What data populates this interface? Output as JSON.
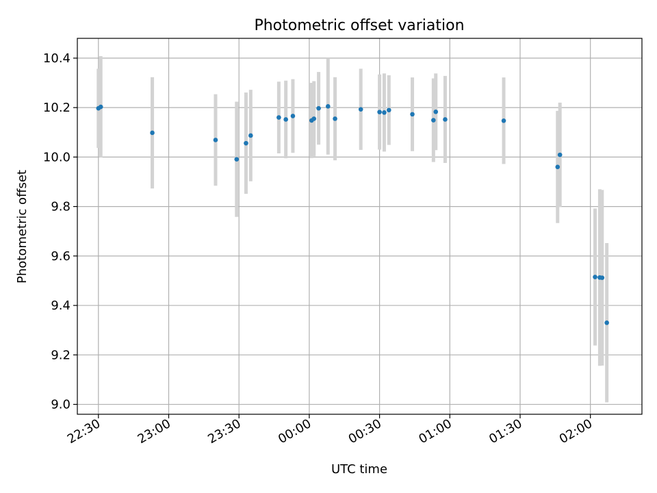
{
  "chart_data": {
    "type": "scatter",
    "title": "Photometric offset variation",
    "xlabel": "UTC time",
    "ylabel": "Photometric offset",
    "x_is_time": true,
    "xlim": [
      "22:21",
      "02:22"
    ],
    "ylim": [
      8.96,
      10.48
    ],
    "grid": true,
    "x_ticks": [
      "22:30",
      "23:00",
      "23:30",
      "00:00",
      "00:30",
      "01:00",
      "01:30",
      "02:00"
    ],
    "y_ticks": [
      "9.0",
      "9.2",
      "9.4",
      "9.6",
      "9.8",
      "10.0",
      "10.2",
      "10.4"
    ],
    "colors": {
      "point": "#1f77b4",
      "errorbar": "#d3d3d3",
      "grid": "#b0b0b0"
    },
    "series": [
      {
        "points": [
          {
            "x": "22:30",
            "y": 10.197,
            "err": 0.16
          },
          {
            "x": "22:31",
            "y": 10.203,
            "err": 0.205
          },
          {
            "x": "22:53",
            "y": 10.098,
            "err": 0.225
          },
          {
            "x": "23:20",
            "y": 10.069,
            "err": 0.185
          },
          {
            "x": "23:29",
            "y": 9.991,
            "err": 0.233
          },
          {
            "x": "23:33",
            "y": 10.056,
            "err": 0.205
          },
          {
            "x": "23:35",
            "y": 10.087,
            "err": 0.185
          },
          {
            "x": "23:47",
            "y": 10.16,
            "err": 0.145
          },
          {
            "x": "23:50",
            "y": 10.152,
            "err": 0.157
          },
          {
            "x": "23:53",
            "y": 10.166,
            "err": 0.149
          },
          {
            "x": "00:01",
            "y": 10.148,
            "err": 0.152
          },
          {
            "x": "00:02",
            "y": 10.155,
            "err": 0.152
          },
          {
            "x": "00:04",
            "y": 10.197,
            "err": 0.147
          },
          {
            "x": "00:08",
            "y": 10.205,
            "err": 0.195
          },
          {
            "x": "00:11",
            "y": 10.155,
            "err": 0.168
          },
          {
            "x": "00:22",
            "y": 10.193,
            "err": 0.164
          },
          {
            "x": "00:30",
            "y": 10.182,
            "err": 0.152
          },
          {
            "x": "00:32",
            "y": 10.18,
            "err": 0.158
          },
          {
            "x": "00:34",
            "y": 10.19,
            "err": 0.141
          },
          {
            "x": "00:44",
            "y": 10.173,
            "err": 0.149
          },
          {
            "x": "00:53",
            "y": 10.149,
            "err": 0.169
          },
          {
            "x": "00:54",
            "y": 10.183,
            "err": 0.155
          },
          {
            "x": "00:58",
            "y": 10.152,
            "err": 0.176
          },
          {
            "x": "01:23",
            "y": 10.147,
            "err": 0.175
          },
          {
            "x": "01:46",
            "y": 9.96,
            "err": 0.227
          },
          {
            "x": "01:47",
            "y": 10.009,
            "err": 0.211
          },
          {
            "x": "02:02",
            "y": 9.515,
            "err": 0.277
          },
          {
            "x": "02:04",
            "y": 9.513,
            "err": 0.357
          },
          {
            "x": "02:05",
            "y": 9.512,
            "err": 0.355
          },
          {
            "x": "02:07",
            "y": 9.33,
            "err": 0.322
          }
        ]
      }
    ]
  }
}
